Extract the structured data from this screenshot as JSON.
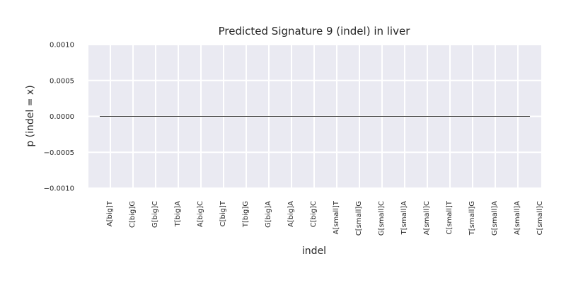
{
  "chart_data": {
    "type": "line",
    "title": "Predicted Signature 9 (indel) in liver",
    "xlabel": "indel",
    "ylabel": "p (indel = x)",
    "categories": [
      "A[big]T",
      "C[big]G",
      "G[big]C",
      "T[big]A",
      "A[big]C",
      "C[big]T",
      "T[big]G",
      "G[big]A",
      "A[big]A",
      "C[big]C",
      "A[small]T",
      "C[small]G",
      "G[small]C",
      "T[small]A",
      "A[small]C",
      "C[small]T",
      "T[small]G",
      "G[small]A",
      "A[small]A",
      "C[small]C"
    ],
    "series": [
      {
        "values": [
          0,
          0,
          0,
          0,
          0,
          0,
          0,
          0,
          0,
          0,
          0,
          0,
          0,
          0,
          0,
          0,
          0,
          0,
          0,
          0
        ]
      }
    ],
    "ylim": [
      -0.001,
      0.001
    ],
    "yticks": [
      0.001,
      0.0005,
      0.0,
      -0.0005,
      -0.001
    ],
    "ytick_labels": [
      "0.0010",
      "0.0005",
      "0.0000",
      "−0.0005",
      "−0.0010"
    ],
    "grid": true,
    "colors": {
      "background": "#eaeaf2",
      "grid": "#ffffff",
      "line": "#000000"
    }
  }
}
